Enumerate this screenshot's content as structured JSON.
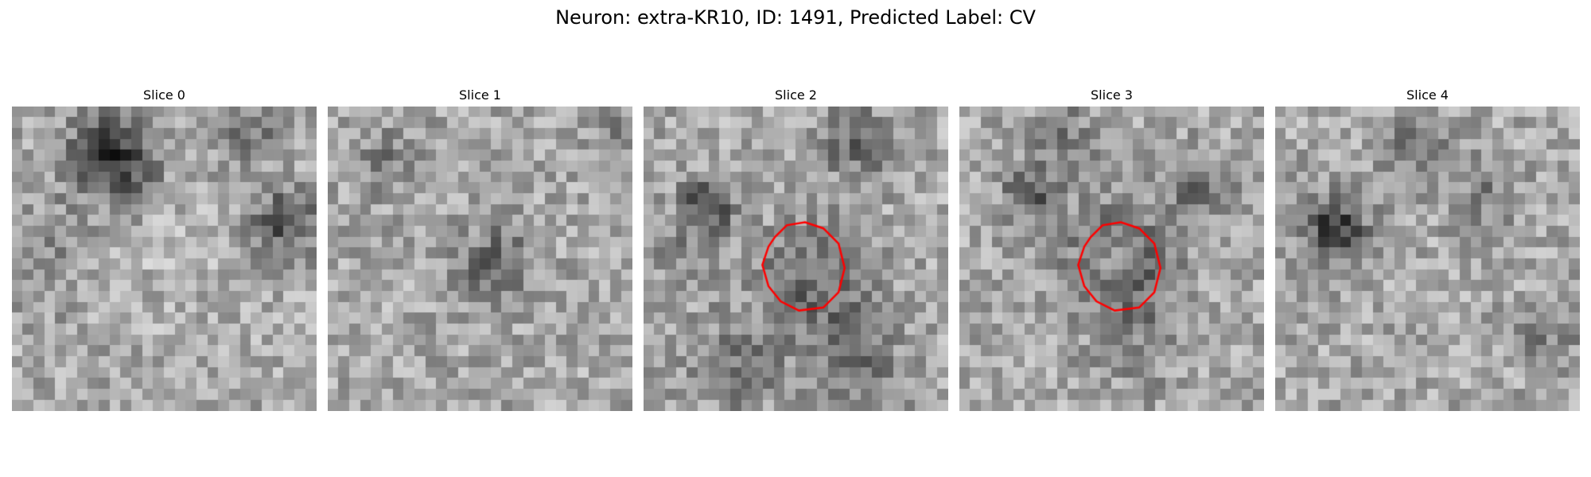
{
  "figure": {
    "title": "Neuron: extra-KR10, ID: 1491, Predicted Label: CV"
  },
  "panels": [
    {
      "title": "Slice 0",
      "seed": 11,
      "contour": false,
      "blobs": [
        [
          0.33,
          0.17,
          0.1,
          -0.45
        ],
        [
          0.9,
          0.38,
          0.07,
          -0.38
        ],
        [
          0.78,
          0.1,
          0.06,
          -0.22
        ],
        [
          0.1,
          0.5,
          0.12,
          -0.1
        ],
        [
          0.5,
          0.5,
          0.15,
          0.05
        ]
      ]
    },
    {
      "title": "Slice 1",
      "seed": 29,
      "contour": false,
      "blobs": [
        [
          0.55,
          0.52,
          0.08,
          -0.3
        ],
        [
          0.2,
          0.18,
          0.08,
          -0.15
        ],
        [
          0.95,
          0.1,
          0.07,
          -0.12
        ]
      ]
    },
    {
      "title": "Slice 2",
      "seed": 47,
      "contour": true,
      "blobs": [
        [
          0.56,
          0.58,
          0.12,
          -0.3
        ],
        [
          0.56,
          0.55,
          0.05,
          0.2
        ],
        [
          0.21,
          0.33,
          0.06,
          -0.4
        ],
        [
          0.7,
          0.85,
          0.1,
          -0.25
        ],
        [
          0.3,
          0.85,
          0.1,
          -0.2
        ],
        [
          0.7,
          0.12,
          0.08,
          -0.25
        ],
        [
          0.15,
          0.5,
          0.08,
          -0.12
        ]
      ]
    },
    {
      "title": "Slice 3",
      "seed": 71,
      "contour": true,
      "blobs": [
        [
          0.53,
          0.52,
          0.13,
          -0.32
        ],
        [
          0.5,
          0.52,
          0.06,
          0.22
        ],
        [
          0.24,
          0.28,
          0.06,
          -0.3
        ],
        [
          0.78,
          0.25,
          0.07,
          -0.25
        ],
        [
          0.35,
          0.1,
          0.08,
          -0.15
        ],
        [
          0.6,
          0.8,
          0.1,
          -0.1
        ]
      ]
    },
    {
      "title": "Slice 4",
      "seed": 93,
      "contour": false,
      "blobs": [
        [
          0.2,
          0.4,
          0.07,
          -0.45
        ],
        [
          0.7,
          0.3,
          0.08,
          -0.15
        ],
        [
          0.9,
          0.75,
          0.07,
          -0.15
        ],
        [
          0.45,
          0.12,
          0.08,
          -0.18
        ]
      ]
    }
  ]
}
